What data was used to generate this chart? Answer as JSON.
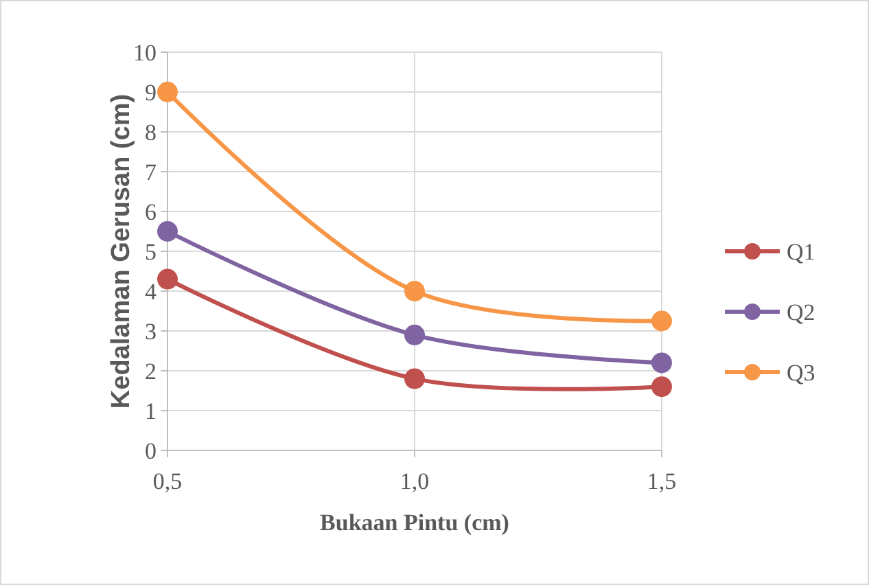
{
  "chart_data": {
    "type": "line",
    "xlabel": "Bukaan Pintu (cm)",
    "ylabel": "Kedalaman Gerusan (cm)",
    "x": [
      0.5,
      1.0,
      1.5
    ],
    "series": [
      {
        "name": "Q1",
        "color": "#c0504d",
        "values": [
          4.3,
          1.8,
          1.6
        ]
      },
      {
        "name": "Q2",
        "color": "#8064a2",
        "values": [
          5.5,
          2.9,
          2.2
        ]
      },
      {
        "name": "Q3",
        "color": "#f79646",
        "values": [
          9.0,
          4.0,
          3.25
        ]
      }
    ],
    "xlim": [
      0.5,
      1.5
    ],
    "xticks": [
      {
        "value": 0.5,
        "label": "0,5"
      },
      {
        "value": 1.0,
        "label": "1,0"
      },
      {
        "value": 1.5,
        "label": "1,5"
      }
    ],
    "ylim": [
      0,
      10
    ],
    "yticks": [
      0,
      1,
      2,
      3,
      4,
      5,
      6,
      7,
      8,
      9,
      10
    ],
    "grid": true,
    "legend": "right",
    "marker": "circle",
    "line_style": "solid"
  }
}
